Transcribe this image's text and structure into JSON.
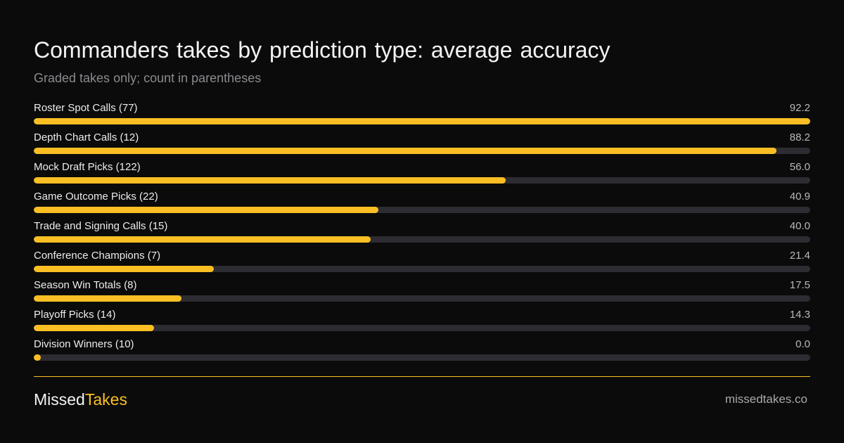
{
  "header": {
    "title": "Commanders takes by prediction type: average accuracy",
    "subtitle": "Graded takes only; count in parentheses"
  },
  "colors": {
    "background": "#0b0b0b",
    "bar_fill": "#fbbf24",
    "bar_track": "#2c2c32",
    "divider": "#fbbf24"
  },
  "chart_data": {
    "type": "bar",
    "orientation": "horizontal",
    "title": "Commanders takes by prediction type: average accuracy",
    "subtitle": "Graded takes only; count in parentheses",
    "xlim": [
      0,
      92.2
    ],
    "categories": [
      "Roster Spot Calls (77)",
      "Depth Chart Calls (12)",
      "Mock Draft Picks (122)",
      "Game Outcome Picks (22)",
      "Trade and Signing Calls (15)",
      "Conference Champions (7)",
      "Season Win Totals (8)",
      "Playoff Picks (14)",
      "Division Winners (10)"
    ],
    "values": [
      92.2,
      88.2,
      56.0,
      40.9,
      40.0,
      21.4,
      17.5,
      14.3,
      0.0
    ],
    "value_labels": [
      "92.2",
      "88.2",
      "56.0",
      "40.9",
      "40.0",
      "21.4",
      "17.5",
      "14.3",
      "0.0"
    ]
  },
  "footer": {
    "brand_part1": "Missed",
    "brand_part2": "Takes",
    "site": "missedtakes.co"
  }
}
